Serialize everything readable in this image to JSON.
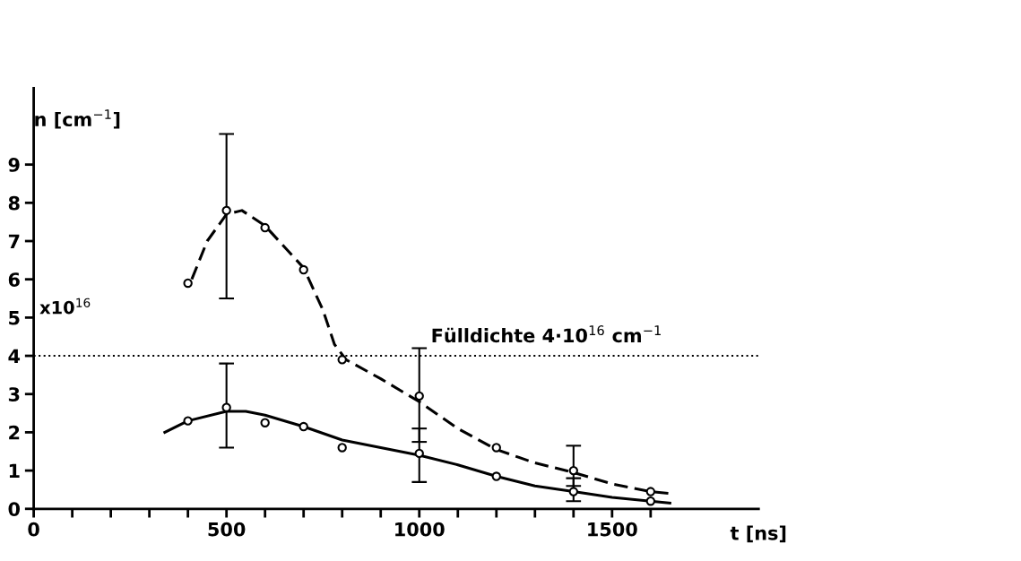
{
  "chart_data": {
    "type": "scatter",
    "xlabel": "t [ns]",
    "ylabel": "n [cm$^{−1}$]",
    "annotations": [
      "x10$^{16}$"
    ],
    "xlim": [
      0,
      1880
    ],
    "ylim": [
      0,
      11
    ],
    "xticks": [
      0,
      {
        "value": 100,
        "label": null
      },
      {
        "value": 200,
        "label": null
      },
      {
        "value": 300,
        "label": null
      },
      {
        "value": 400,
        "label": null
      },
      500,
      {
        "value": 600,
        "label": null
      },
      {
        "value": 700,
        "label": null
      },
      {
        "value": 800,
        "label": null
      },
      {
        "value": 900,
        "label": null
      },
      1000,
      {
        "value": 1100,
        "label": null
      },
      {
        "value": 1200,
        "label": null
      },
      {
        "value": 1300,
        "label": null
      },
      {
        "value": 1400,
        "label": null
      },
      1500,
      {
        "value": 1600,
        "label": null
      }
    ],
    "yticks": [
      0,
      1,
      2,
      3,
      4,
      5,
      6,
      7,
      8,
      9
    ],
    "grid": false,
    "legend": false,
    "ref_lines": [
      {
        "axis": "y",
        "value": 4,
        "label": "Fülldichte 4·10$^{16}$ cm$^{−1}$",
        "color": "#000000",
        "line_style": "dotted"
      }
    ],
    "series": [
      {
        "type": "line",
        "color": "#000000",
        "line_style": "dashed",
        "marker": "none",
        "x": [
          410,
          450,
          500,
          540,
          600,
          700,
          750,
          780,
          810,
          900,
          1000,
          1100,
          1200,
          1300,
          1400,
          1500,
          1600,
          1650
        ],
        "values": [
          6.0,
          7.0,
          7.7,
          7.8,
          7.4,
          6.3,
          5.2,
          4.3,
          3.9,
          3.4,
          2.8,
          2.1,
          1.55,
          1.2,
          0.95,
          0.65,
          0.45,
          0.4
        ]
      },
      {
        "type": "line",
        "color": "#000000",
        "line_style": "solid",
        "marker": "none",
        "x": [
          340,
          400,
          500,
          550,
          600,
          700,
          800,
          900,
          1000,
          1100,
          1200,
          1300,
          1400,
          1500,
          1600,
          1650
        ],
        "values": [
          2.0,
          2.3,
          2.55,
          2.55,
          2.45,
          2.15,
          1.8,
          1.6,
          1.4,
          1.15,
          0.85,
          0.6,
          0.45,
          0.3,
          0.2,
          0.15
        ]
      },
      {
        "color": "#000000",
        "marker": "circle",
        "x": [
          400,
          500,
          600,
          700,
          800,
          1000,
          1200,
          1400,
          1600
        ],
        "values": [
          5.9,
          7.8,
          7.35,
          6.25,
          3.9,
          2.95,
          1.6,
          1.0,
          0.45
        ],
        "errors": [
          null,
          [
            5.5,
            9.8
          ],
          null,
          null,
          null,
          [
            1.75,
            4.2
          ],
          null,
          [
            0.6,
            1.65
          ],
          null
        ]
      },
      {
        "color": "#000000",
        "marker": "circle",
        "x": [
          400,
          500,
          600,
          700,
          800,
          1000,
          1200,
          1400,
          1600
        ],
        "values": [
          2.3,
          2.65,
          2.25,
          2.15,
          1.6,
          1.45,
          0.85,
          0.45,
          0.2
        ],
        "errors": [
          null,
          [
            1.6,
            3.8
          ],
          null,
          null,
          null,
          [
            0.7,
            2.1
          ],
          null,
          [
            0.2,
            0.8
          ],
          null
        ]
      }
    ]
  }
}
